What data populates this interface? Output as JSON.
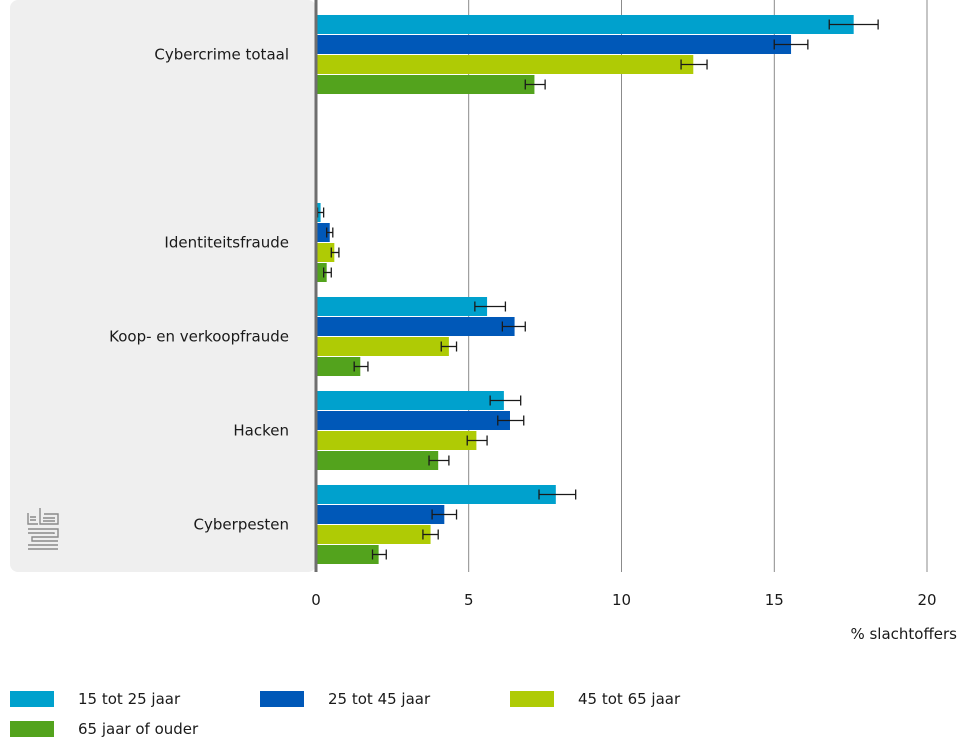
{
  "chart_data": {
    "type": "bar",
    "orientation": "horizontal",
    "categories": [
      "Cybercrime totaal",
      "Identiteitsfraude",
      "Koop- en verkoopfraude",
      "Hacken",
      "Cyberpesten"
    ],
    "series": [
      {
        "name": "15 tot 25 jaar",
        "color": "#00a1cd",
        "values": [
          17.6,
          0.15,
          5.6,
          6.15,
          7.85
        ],
        "error_low": [
          16.8,
          0.05,
          5.2,
          5.7,
          7.3
        ],
        "error_high": [
          18.4,
          0.25,
          6.2,
          6.7,
          8.5
        ]
      },
      {
        "name": "25 tot 45 jaar",
        "color": "#0058b8",
        "values": [
          15.55,
          0.45,
          6.5,
          6.35,
          4.2
        ],
        "error_low": [
          15.0,
          0.35,
          6.1,
          5.95,
          3.8
        ],
        "error_high": [
          16.1,
          0.55,
          6.85,
          6.8,
          4.6
        ]
      },
      {
        "name": "45 tot 65 jaar",
        "color": "#afcb05",
        "values": [
          12.35,
          0.6,
          4.35,
          5.25,
          3.75
        ],
        "error_low": [
          11.95,
          0.5,
          4.1,
          4.95,
          3.5
        ],
        "error_high": [
          12.8,
          0.75,
          4.6,
          5.6,
          4.0
        ]
      },
      {
        "name": "65 jaar of ouder",
        "color": "#53a31d",
        "values": [
          7.15,
          0.35,
          1.45,
          4.0,
          2.05
        ],
        "error_low": [
          6.85,
          0.25,
          1.25,
          3.7,
          1.85
        ],
        "error_high": [
          7.5,
          0.5,
          1.7,
          4.35,
          2.3
        ]
      }
    ],
    "xlabel": "% slachtoffers",
    "xlim": [
      0,
      20
    ],
    "xticks": [
      0,
      5,
      10,
      15,
      20
    ],
    "grid": true,
    "legend_position": "bottom"
  },
  "logo": {
    "icon": "cbs-logo-icon"
  },
  "colors": {
    "label_panel": "#efefef",
    "axis": "#6e6e6e",
    "grid": "#6e6e6e",
    "error_bar": "#1a1a1a"
  }
}
